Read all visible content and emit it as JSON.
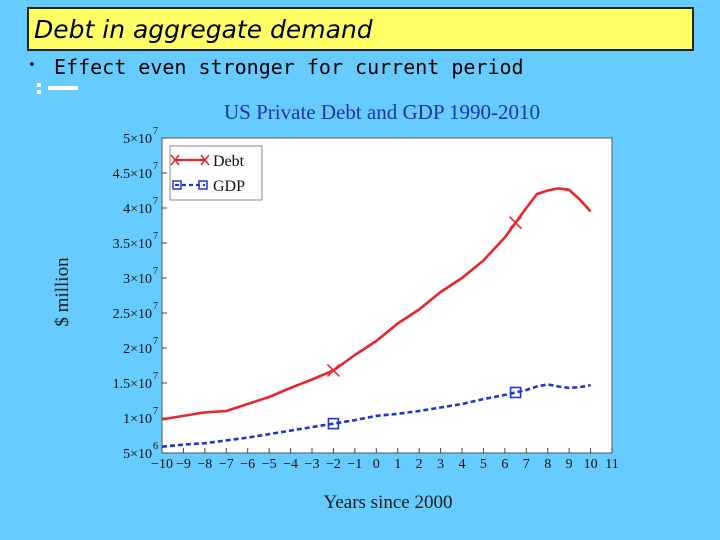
{
  "slide": {
    "title": "Debt in aggregate demand",
    "bullet": "•",
    "bullet_text": "Effect even stronger for current period"
  },
  "chart_data": {
    "type": "line",
    "title": "US Private Debt and GDP 1990-2010",
    "xlabel": "Years since 2000",
    "ylabel": "$ million",
    "xlim": [
      -10,
      11
    ],
    "ylim": [
      5000000,
      50000000
    ],
    "x_ticks": [
      -10,
      -9,
      -8,
      -7,
      -6,
      -5,
      -4,
      -3,
      -2,
      -1,
      0,
      1,
      2,
      3,
      4,
      5,
      6,
      7,
      8,
      9,
      10,
      11
    ],
    "y_ticks": [
      {
        "mantissa": "5",
        "exp": "6",
        "value": 5000000
      },
      {
        "mantissa": "1",
        "exp": "7",
        "value": 10000000
      },
      {
        "mantissa": "1.5",
        "exp": "7",
        "value": 15000000
      },
      {
        "mantissa": "2",
        "exp": "7",
        "value": 20000000
      },
      {
        "mantissa": "2.5",
        "exp": "7",
        "value": 25000000
      },
      {
        "mantissa": "3",
        "exp": "7",
        "value": 30000000
      },
      {
        "mantissa": "3.5",
        "exp": "7",
        "value": 35000000
      },
      {
        "mantissa": "4",
        "exp": "7",
        "value": 40000000
      },
      {
        "mantissa": "4.5",
        "exp": "7",
        "value": 45000000
      },
      {
        "mantissa": "5",
        "exp": "7",
        "value": 50000000
      }
    ],
    "x_tick_prefix": "−",
    "y_tick_times": "×10",
    "legend_position": "top-left",
    "series": [
      {
        "name": "Debt",
        "color": "#e8242c",
        "marker": "x",
        "marker_x": [
          -2,
          6.5
        ],
        "x": [
          -10,
          -9,
          -8,
          -7,
          -6,
          -5,
          -4,
          -3,
          -2,
          -1,
          0,
          1,
          2,
          3,
          4,
          5,
          6,
          7,
          7.5,
          8,
          8.5,
          9,
          9.5,
          10
        ],
        "values": [
          9800000,
          10300000,
          10800000,
          11000000,
          12000000,
          13000000,
          14300000,
          15500000,
          16800000,
          19000000,
          21000000,
          23500000,
          25500000,
          28000000,
          30000000,
          32500000,
          35800000,
          40000000,
          42000000,
          42500000,
          42800000,
          42600000,
          41200000,
          39500000
        ]
      },
      {
        "name": "GDP",
        "color": "#1f35d6",
        "marker": "square",
        "marker_x": [
          -2,
          6.5
        ],
        "x": [
          -10,
          -9,
          -8,
          -7,
          -6,
          -5,
          -4,
          -3,
          -2,
          -1,
          0,
          1,
          2,
          3,
          4,
          5,
          6,
          7,
          7.5,
          8,
          8.5,
          9,
          9.5,
          10
        ],
        "values": [
          5900000,
          6200000,
          6400000,
          6800000,
          7200000,
          7700000,
          8200000,
          8700000,
          9200000,
          9700000,
          10300000,
          10600000,
          11000000,
          11500000,
          12000000,
          12700000,
          13300000,
          14000000,
          14500000,
          14800000,
          14500000,
          14300000,
          14400000,
          14700000
        ]
      }
    ]
  }
}
